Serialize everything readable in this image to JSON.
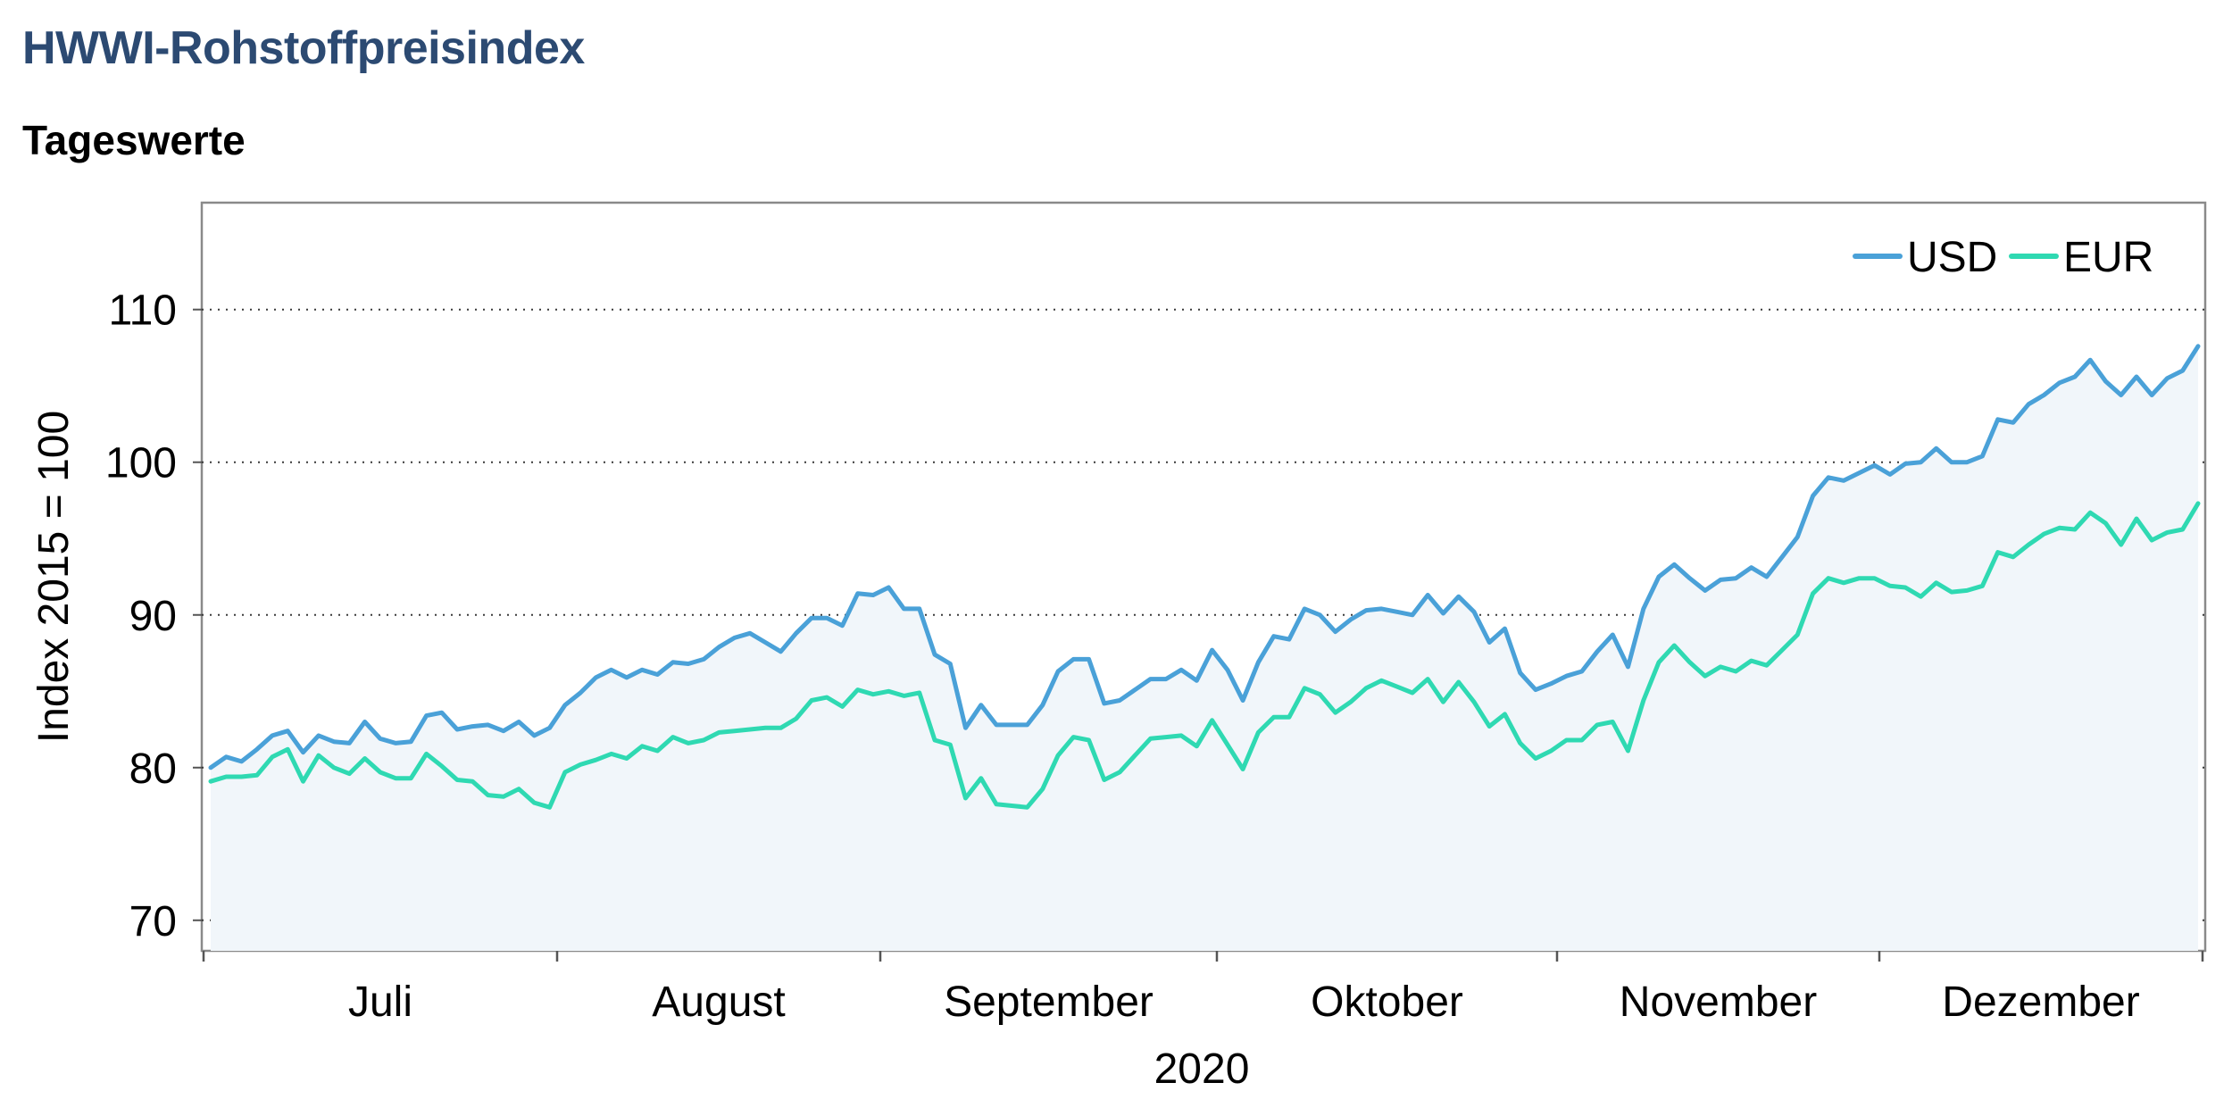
{
  "header": {
    "title": "HWWI-Rohstoffpreisindex",
    "subtitle": "Tageswerte"
  },
  "chart_data": {
    "type": "line",
    "title": "HWWI-Rohstoffpreisindex",
    "subtitle": "Tageswerte",
    "ylabel": "Index 2015 = 100",
    "xlabel": "2020",
    "ylim": [
      68,
      117
    ],
    "yticks": [
      70,
      80,
      90,
      100,
      110
    ],
    "grid": "horizontal dotted",
    "legend": "top-right",
    "month_labels": [
      "Juli",
      "August",
      "September",
      "Oktober",
      "November",
      "Dezember"
    ],
    "area_fill": "#f1f6fa",
    "series": [
      {
        "name": "USD",
        "color": "#4aa1d8",
        "values": [
          80.0,
          80.7,
          80.4,
          81.2,
          82.1,
          82.4,
          81.0,
          82.1,
          81.7,
          81.6,
          83.0,
          81.9,
          81.6,
          81.7,
          83.4,
          83.6,
          82.5,
          82.7,
          82.8,
          82.4,
          83.0,
          82.1,
          82.6,
          84.1,
          84.9,
          85.9,
          86.4,
          85.9,
          86.4,
          86.1,
          86.9,
          86.8,
          87.1,
          87.9,
          88.5,
          88.8,
          88.2,
          87.6,
          88.8,
          89.8,
          89.8,
          89.3,
          91.4,
          91.3,
          91.8,
          90.4,
          90.4,
          87.4,
          86.8,
          82.6,
          84.1,
          82.8,
          82.8,
          82.8,
          84.1,
          86.3,
          87.1,
          87.1,
          84.2,
          84.4,
          85.1,
          85.8,
          85.8,
          86.4,
          85.7,
          87.7,
          86.4,
          84.4,
          86.9,
          88.6,
          88.4,
          90.4,
          90.0,
          88.9,
          89.7,
          90.3,
          90.4,
          90.2,
          90.0,
          91.3,
          90.1,
          91.2,
          90.2,
          88.2,
          89.1,
          86.2,
          85.1,
          85.5,
          86.0,
          86.3,
          87.6,
          88.7,
          86.6,
          90.4,
          92.5,
          93.3,
          92.4,
          91.6,
          92.3,
          92.4,
          93.1,
          92.5,
          93.8,
          95.1,
          97.8,
          99.0,
          98.8,
          99.3,
          99.8,
          99.2,
          99.9,
          100.0,
          100.9,
          100.0,
          100.0,
          100.4,
          102.8,
          102.6,
          103.8,
          104.4,
          105.2,
          105.6,
          106.7,
          105.3,
          104.4,
          105.6,
          104.4,
          105.5,
          106.0,
          107.6
        ]
      },
      {
        "name": "EUR",
        "color": "#2fd9b2",
        "values": [
          79.1,
          79.4,
          79.4,
          79.5,
          80.7,
          81.2,
          79.1,
          80.8,
          80.0,
          79.6,
          80.6,
          79.7,
          79.3,
          79.3,
          80.9,
          80.1,
          79.2,
          79.1,
          78.2,
          78.1,
          78.6,
          77.7,
          77.4,
          79.7,
          80.2,
          80.5,
          80.9,
          80.6,
          81.4,
          81.1,
          82.0,
          81.6,
          81.8,
          82.3,
          82.4,
          82.5,
          82.6,
          82.6,
          83.2,
          84.4,
          84.6,
          84.0,
          85.1,
          84.8,
          85.0,
          84.7,
          84.9,
          81.8,
          81.5,
          78.0,
          79.3,
          77.6,
          77.5,
          77.4,
          78.6,
          80.8,
          82.0,
          81.8,
          79.2,
          79.7,
          80.8,
          81.9,
          82.0,
          82.1,
          81.4,
          83.1,
          81.5,
          79.9,
          82.3,
          83.3,
          83.3,
          85.2,
          84.8,
          83.6,
          84.3,
          85.2,
          85.7,
          85.3,
          84.9,
          85.8,
          84.3,
          85.6,
          84.3,
          82.7,
          83.5,
          81.6,
          80.6,
          81.1,
          81.8,
          81.8,
          82.8,
          83.0,
          81.1,
          84.4,
          86.9,
          88.0,
          86.9,
          86.0,
          86.6,
          86.3,
          87.0,
          86.7,
          87.7,
          88.7,
          91.4,
          92.4,
          92.1,
          92.4,
          92.4,
          91.9,
          91.8,
          91.2,
          92.1,
          91.5,
          91.6,
          91.9,
          94.1,
          93.8,
          94.6,
          95.3,
          95.7,
          95.6,
          96.7,
          96.0,
          94.6,
          96.3,
          94.9,
          95.4,
          95.6,
          97.3
        ]
      }
    ]
  }
}
